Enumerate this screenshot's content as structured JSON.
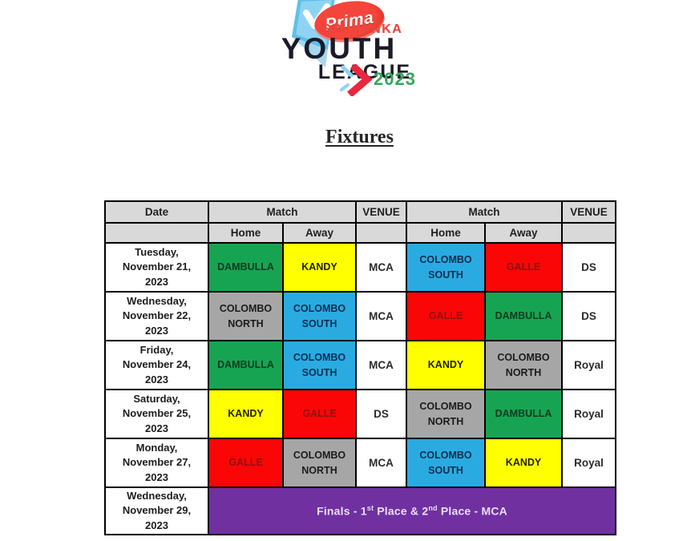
{
  "logo": {
    "brand": "Prima",
    "line1": "SRI LANKA",
    "line2": "YOUTH",
    "line3": "LEAGUE",
    "year": "2023"
  },
  "title": "Fixtures",
  "colors": {
    "header_bg": "#d9d9d9",
    "border": "#000000",
    "finals_bg": "#7030a0",
    "finals_fg": "#e9def7",
    "logo_flag_blue": "#5fc0ea",
    "logo_red": "#e8283c",
    "logo_green": "#36a65b"
  },
  "table": {
    "headers": {
      "date": "Date",
      "match": "Match",
      "venue": "VENUE",
      "home": "Home",
      "away": "Away"
    },
    "teams": {
      "DAMBULLA": {
        "bg": "#17a452",
        "fg": "#0e3a20"
      },
      "KANDY": {
        "bg": "#ffff00",
        "fg": "#1f1f00"
      },
      "GALLE": {
        "bg": "#fb0606",
        "fg": "#8f1010"
      },
      "COLOMBO SOUTH": {
        "bg": "#29abe2",
        "fg": "#0d2d4e"
      },
      "COLOMBO NORTH": {
        "bg": "#a6a6a6",
        "fg": "#1b1b1b"
      }
    },
    "rows": [
      {
        "date": "Tuesday,\nNovember 21,\n2023",
        "m1": {
          "home": "DAMBULLA",
          "away": "KANDY",
          "venue": "MCA"
        },
        "m2": {
          "home": "COLOMBO\nSOUTH",
          "away": "GALLE",
          "venue": "DS"
        }
      },
      {
        "date": "Wednesday,\nNovember 22,\n2023",
        "m1": {
          "home": "COLOMBO\nNORTH",
          "away": "COLOMBO\nSOUTH",
          "venue": "MCA"
        },
        "m2": {
          "home": "GALLE",
          "away": "DAMBULLA",
          "venue": "DS"
        }
      },
      {
        "date": "Friday,\nNovember 24,\n2023",
        "m1": {
          "home": "DAMBULLA",
          "away": "COLOMBO\nSOUTH",
          "venue": "MCA"
        },
        "m2": {
          "home": "KANDY",
          "away": "COLOMBO\nNORTH",
          "venue": "Royal"
        }
      },
      {
        "date": "Saturday,\nNovember 25,\n2023",
        "m1": {
          "home": "KANDY",
          "away": "GALLE",
          "venue": "DS"
        },
        "m2": {
          "home": "COLOMBO\nNORTH",
          "away": "DAMBULLA",
          "venue": "Royal"
        }
      },
      {
        "date": "Monday,\nNovember 27,\n2023",
        "m1": {
          "home": "GALLE",
          "away": "COLOMBO\nNORTH",
          "venue": "MCA"
        },
        "m2": {
          "home": "COLOMBO\nSOUTH",
          "away": "KANDY",
          "venue": "Royal"
        }
      }
    ],
    "finals": {
      "date": "Wednesday,\nNovember 29,\n2023",
      "parts": [
        "Finals - 1",
        "st",
        " Place & 2",
        "nd",
        " Place - MCA"
      ]
    }
  }
}
